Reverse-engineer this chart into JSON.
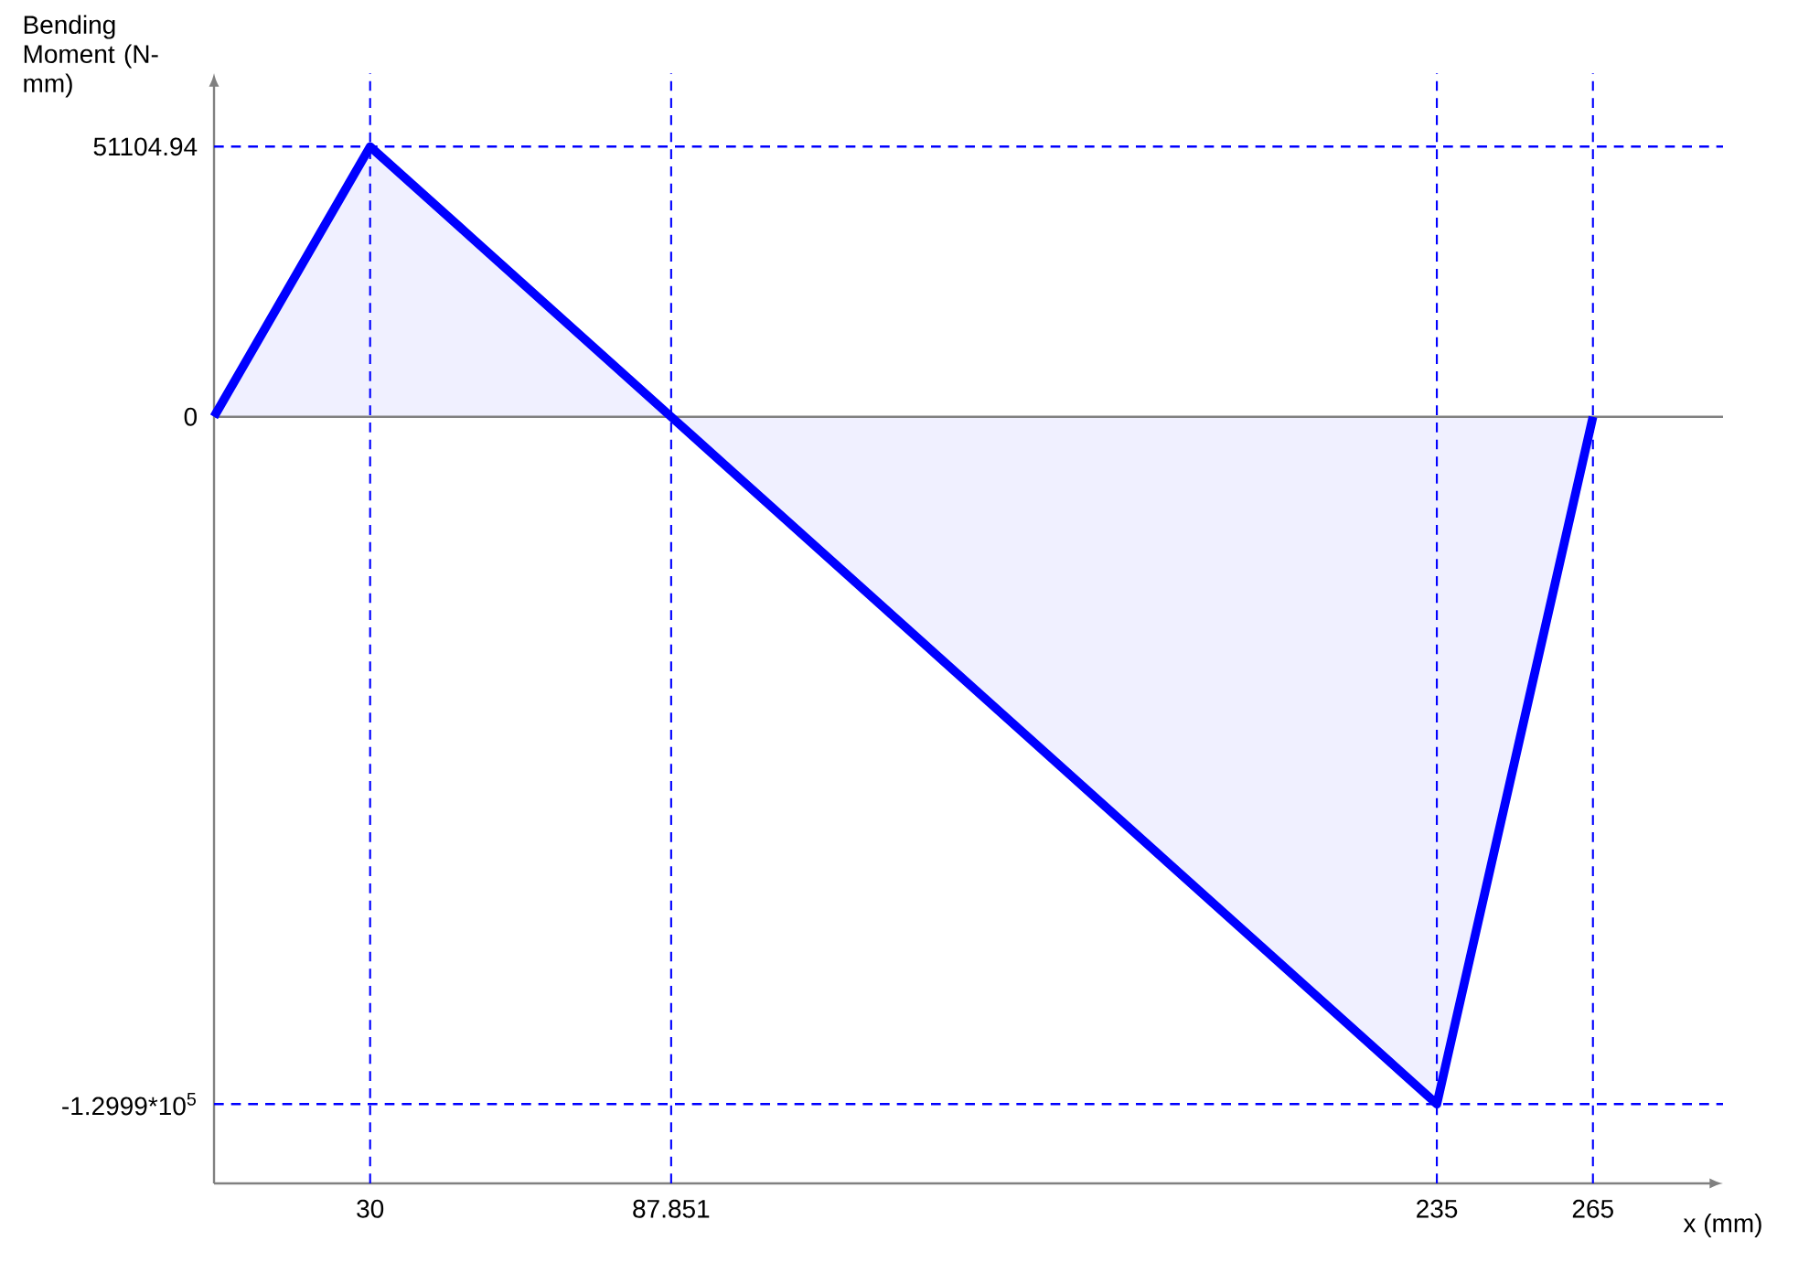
{
  "chart_data": {
    "type": "area",
    "ylabel": "Bending Moment (N-mm)",
    "xlabel": "x  (mm)",
    "x": [
      0,
      30,
      87.851,
      235,
      265
    ],
    "series": [
      {
        "color": "#0000ff",
        "values": [
          0,
          51104.94,
          0,
          -129990,
          0
        ]
      }
    ],
    "xlim": [
      0,
      290
    ],
    "ylim": [
      -145000,
      65000
    ],
    "xticks": [
      30,
      87.851,
      235,
      265
    ],
    "yticks": [
      {
        "value": -129990,
        "label": "-1.2999*10$^{5}$"
      },
      0,
      51104.94
    ],
    "ref_lines": [
      {
        "axis": "y",
        "value": 0,
        "color": "#808080",
        "line_style": "solid"
      },
      {
        "axis": "x",
        "value": 30,
        "color": "#0000ff",
        "line_style": "dashed"
      },
      {
        "axis": "x",
        "value": 87.851,
        "color": "#0000ff",
        "line_style": "dashed"
      },
      {
        "axis": "x",
        "value": 235,
        "color": "#0000ff",
        "line_style": "dashed"
      },
      {
        "axis": "x",
        "value": 265,
        "color": "#0000ff",
        "line_style": "dashed"
      },
      {
        "axis": "y",
        "value": 51104.94,
        "color": "#0000ff",
        "line_style": "dashed"
      },
      {
        "axis": "y",
        "value": -129990,
        "color": "#0000ff",
        "line_style": "dashed"
      }
    ]
  }
}
